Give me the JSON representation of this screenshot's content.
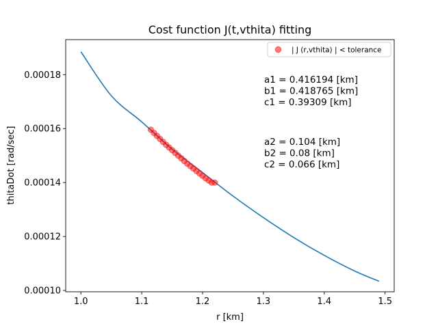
{
  "chart_data": {
    "type": "line",
    "title": "Cost function J(t,vthita) fitting",
    "xlabel": "r [km]",
    "ylabel": "thitaDot [rad/sec]",
    "xlim": [
      0.975,
      1.515
    ],
    "ylim": [
      9.95e-05,
      0.000193
    ],
    "x_ticks": [
      1.0,
      1.1,
      1.2,
      1.3,
      1.4,
      1.5
    ],
    "x_tick_labels": [
      "1.0",
      "1.1",
      "1.2",
      "1.3",
      "1.4",
      "1.5"
    ],
    "y_ticks": [
      0.0001,
      0.00012,
      0.00014,
      0.00016,
      0.00018
    ],
    "y_tick_labels": [
      "0.00010",
      "0.00012",
      "0.00014",
      "0.00016",
      "0.00018"
    ],
    "grid": false,
    "legend_position": "top-right",
    "line_color": "#1f77b4",
    "scatter_color": "#ff0000",
    "series": [
      {
        "kind": "line",
        "x": [
          1.0,
          1.05,
          1.1,
          1.15,
          1.2,
          1.25,
          1.3,
          1.35,
          1.4,
          1.45,
          1.49
        ],
        "y": [
          0.0001885,
          0.0001722,
          0.0001625,
          0.0001524,
          0.0001437,
          0.000135,
          0.000127,
          0.0001196,
          0.000113,
          0.0001072,
          0.0001034
        ]
      },
      {
        "kind": "scatter",
        "name": "| J (r,vthita) | < tolerance",
        "x": [
          1.115,
          1.12,
          1.125,
          1.13,
          1.135,
          1.14,
          1.145,
          1.15,
          1.155,
          1.16,
          1.165,
          1.17,
          1.175,
          1.18,
          1.185,
          1.19,
          1.195,
          1.2,
          1.205,
          1.21,
          1.215,
          1.22
        ],
        "y": [
          0.0001596,
          0.0001584,
          0.0001573,
          0.0001562,
          0.0001551,
          0.000154,
          0.000153,
          0.000152,
          0.000151,
          0.00015,
          0.000149,
          0.000148,
          0.000147,
          0.0001461,
          0.0001452,
          0.0001443,
          0.0001434,
          0.0001425,
          0.0001416,
          0.0001408,
          0.00014,
          0.00014
        ]
      }
    ],
    "annotations": [
      {
        "lines": [
          "a1 = 0.416194 [km]",
          "b1 = 0.418765 [km]",
          "c1 = 0.39309 [km]"
        ]
      },
      {
        "lines": [
          "a2 = 0.104 [km]",
          "b2 = 0.08 [km]",
          "c2 = 0.066 [km]"
        ]
      }
    ]
  }
}
